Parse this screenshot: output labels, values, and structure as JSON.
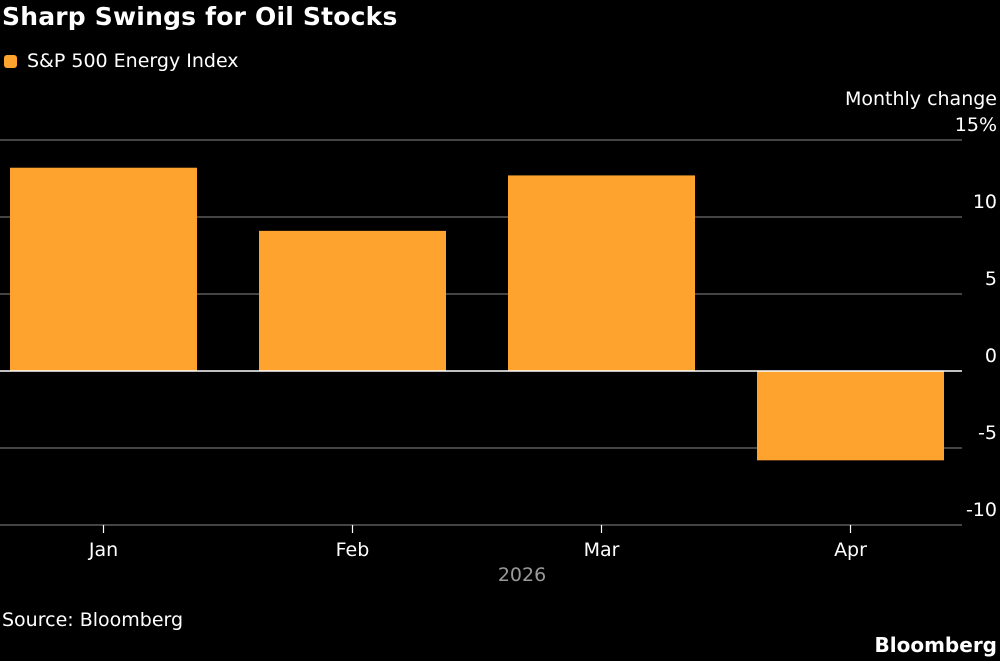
{
  "title": "Sharp Swings for Oil Stocks",
  "legend": {
    "label": "S&P 500 Energy Index",
    "color": "#ffa32f"
  },
  "unit_label": "Monthly change",
  "source": "Source: Bloomberg",
  "brand": "Bloomberg",
  "colors": {
    "background": "#000000",
    "bar": "#ffa32f",
    "grid": "#5a5a5a",
    "zero_line": "#ffffff",
    "text": "#ffffff",
    "muted_text": "#9a9a9a"
  },
  "chart_data": {
    "type": "bar",
    "categories": [
      "Jan",
      "Feb",
      "Mar",
      "Apr"
    ],
    "x_group_label": "2026",
    "series": [
      {
        "name": "S&P 500 Energy Index",
        "values": [
          13.2,
          9.1,
          12.7,
          -5.8
        ]
      }
    ],
    "ylabel": "Monthly change",
    "ylim": [
      -10,
      15
    ],
    "yticks": [
      15,
      10,
      5,
      0,
      -5,
      -10
    ],
    "ytick_labels": [
      "15%",
      "10",
      "5",
      "0",
      "-5",
      "-10"
    ],
    "grid": true,
    "legend_position": "top-left"
  }
}
